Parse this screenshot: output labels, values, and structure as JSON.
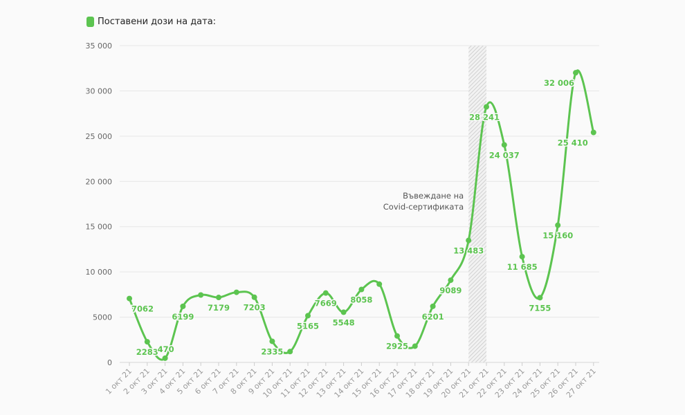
{
  "chart_data": {
    "type": "line",
    "legend": "Поставени дози на дата:",
    "color": "#5cc450",
    "annotation_color": "#555555",
    "categories": [
      "1 окт 21",
      "2 окт 21",
      "3 окт 21",
      "4 окт 21",
      "5 окт 21",
      "6 окт 21",
      "7 окт 21",
      "8 окт 21",
      "9 окт 21",
      "10 окт 21",
      "11 окт 21",
      "12 окт 21",
      "13 окт 21",
      "14 окт 21",
      "15 окт 21",
      "16 окт 21",
      "17 окт 21",
      "18 окт 21",
      "19 окт 21",
      "20 окт 21",
      "21 окт 21",
      "22 окт 21",
      "23 окт 21",
      "24 окт 21",
      "25 окт 21",
      "26 окт 21",
      "27 окт 21"
    ],
    "values": [
      7062,
      2283,
      470,
      6199,
      7450,
      7179,
      7750,
      7203,
      2335,
      1200,
      5165,
      7669,
      5548,
      8058,
      8650,
      2925,
      1800,
      6201,
      9089,
      13483,
      28241,
      24037,
      11685,
      7155,
      15160,
      32006,
      25410
    ],
    "labels": [
      "7062",
      "2283",
      "470",
      "6199",
      "",
      "7179",
      "",
      "7203",
      "2335",
      "",
      "5165",
      "7669",
      "5548",
      "8058",
      "",
      "2925",
      "",
      "6201",
      "9089",
      "13 483",
      "28 241",
      "24 037",
      "11 685",
      "7155",
      "15 160",
      "32 006",
      "25 410"
    ],
    "ylim": [
      0,
      35000
    ],
    "yticks": [
      0,
      5000,
      10000,
      15000,
      20000,
      25000,
      30000,
      35000
    ],
    "ytick_labels": [
      "0",
      "5000",
      "10 000",
      "15 000",
      "20 000",
      "25 000",
      "30 000",
      "35 000"
    ],
    "grid": true,
    "shaded_band": {
      "from": "20 окт 21",
      "to": "21 окт 21"
    },
    "annotation": [
      "Въвеждане на",
      "Covid-сертификата"
    ]
  }
}
